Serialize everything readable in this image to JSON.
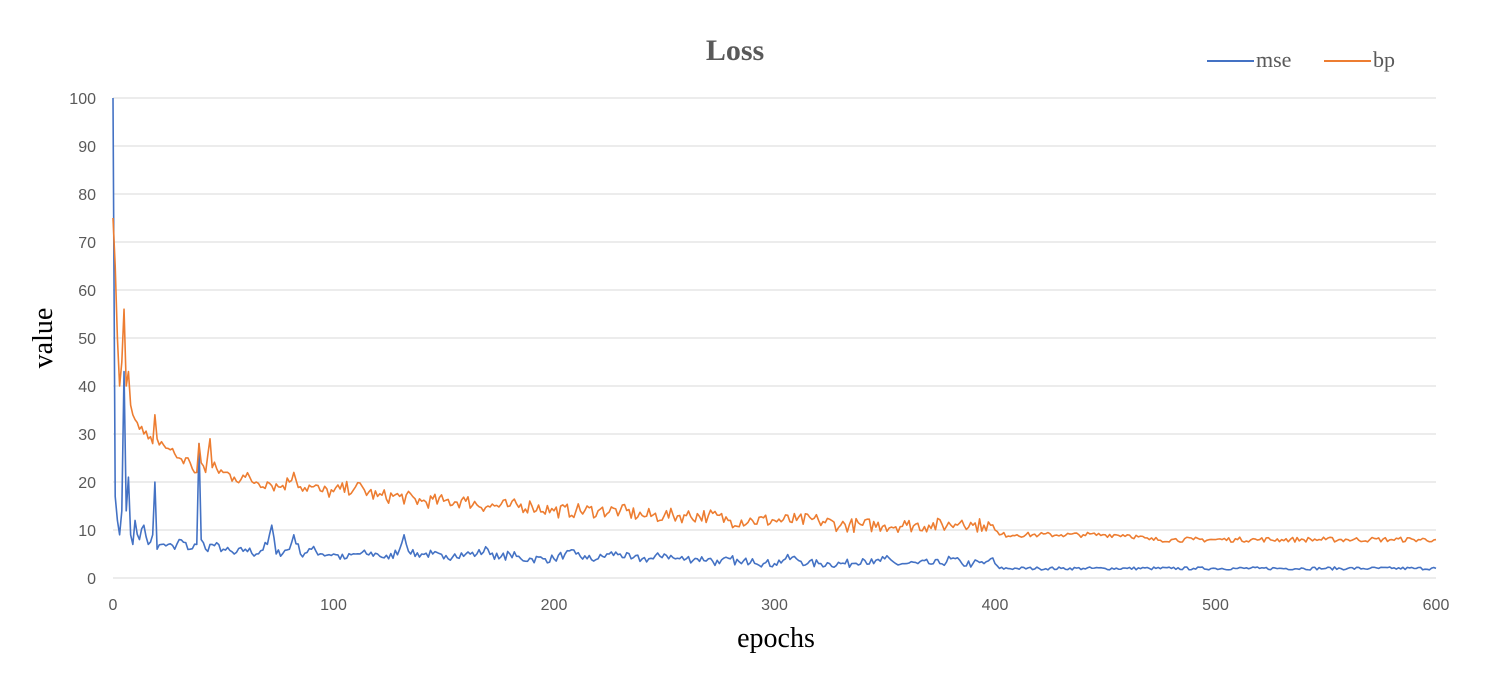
{
  "chart_data": {
    "type": "line",
    "title": "Loss",
    "xlabel": "epochs",
    "ylabel": "value",
    "xlim": [
      0,
      600
    ],
    "ylim": [
      0,
      100
    ],
    "x_ticks": [
      0,
      100,
      200,
      300,
      400,
      500,
      600
    ],
    "y_ticks": [
      0,
      10,
      20,
      30,
      40,
      50,
      60,
      70,
      80,
      90,
      100
    ],
    "grid": "horizontal",
    "legend_position": "top-right",
    "series": [
      {
        "name": "mse",
        "color": "#4472C4",
        "points": [
          [
            0,
            100
          ],
          [
            1,
            17
          ],
          [
            2,
            12
          ],
          [
            3,
            9
          ],
          [
            4,
            14
          ],
          [
            5,
            43
          ],
          [
            6,
            14
          ],
          [
            7,
            21
          ],
          [
            8,
            9
          ],
          [
            9,
            7
          ],
          [
            10,
            12
          ],
          [
            12,
            8
          ],
          [
            14,
            11
          ],
          [
            16,
            7
          ],
          [
            18,
            9
          ],
          [
            19,
            20
          ],
          [
            20,
            6
          ],
          [
            22,
            7
          ],
          [
            25,
            7
          ],
          [
            28,
            6
          ],
          [
            30,
            8
          ],
          [
            35,
            6
          ],
          [
            38,
            7
          ],
          [
            39,
            28
          ],
          [
            40,
            8
          ],
          [
            42,
            6
          ],
          [
            45,
            7
          ],
          [
            50,
            6
          ],
          [
            55,
            5
          ],
          [
            60,
            6
          ],
          [
            65,
            5
          ],
          [
            70,
            7
          ],
          [
            72,
            11
          ],
          [
            74,
            5
          ],
          [
            80,
            6
          ],
          [
            82,
            9
          ],
          [
            85,
            5
          ],
          [
            90,
            6
          ],
          [
            95,
            5
          ],
          [
            100,
            5
          ],
          [
            105,
            4
          ],
          [
            110,
            5
          ],
          [
            115,
            5
          ],
          [
            120,
            5
          ],
          [
            125,
            4
          ],
          [
            130,
            6
          ],
          [
            132,
            9
          ],
          [
            135,
            5
          ],
          [
            140,
            5
          ],
          [
            145,
            5
          ],
          [
            150,
            4
          ],
          [
            155,
            5
          ],
          [
            160,
            5
          ],
          [
            165,
            5
          ],
          [
            170,
            6
          ],
          [
            175,
            4
          ],
          [
            180,
            5
          ],
          [
            185,
            4
          ],
          [
            190,
            4
          ],
          [
            195,
            4
          ],
          [
            200,
            4
          ],
          [
            205,
            5
          ],
          [
            210,
            5
          ],
          [
            215,
            4
          ],
          [
            220,
            4
          ],
          [
            225,
            5
          ],
          [
            230,
            5
          ],
          [
            235,
            4
          ],
          [
            240,
            4
          ],
          [
            245,
            4
          ],
          [
            250,
            5
          ],
          [
            255,
            4
          ],
          [
            260,
            4
          ],
          [
            265,
            4
          ],
          [
            270,
            4
          ],
          [
            275,
            3
          ],
          [
            280,
            4
          ],
          [
            285,
            3
          ],
          [
            290,
            4
          ],
          [
            295,
            3
          ],
          [
            300,
            3
          ],
          [
            305,
            4
          ],
          [
            310,
            4
          ],
          [
            315,
            3
          ],
          [
            320,
            3
          ],
          [
            325,
            3
          ],
          [
            330,
            3
          ],
          [
            335,
            3
          ],
          [
            340,
            4
          ],
          [
            345,
            3
          ],
          [
            350,
            4
          ],
          [
            355,
            3
          ],
          [
            360,
            3
          ],
          [
            365,
            3
          ],
          [
            370,
            3
          ],
          [
            375,
            3
          ],
          [
            380,
            4
          ],
          [
            385,
            3
          ],
          [
            390,
            3
          ],
          [
            395,
            3
          ],
          [
            398,
            4
          ],
          [
            400,
            3
          ],
          [
            402,
            2
          ],
          [
            410,
            2
          ],
          [
            420,
            2
          ],
          [
            430,
            2
          ],
          [
            440,
            2
          ],
          [
            450,
            2
          ],
          [
            460,
            2
          ],
          [
            470,
            2
          ],
          [
            480,
            2
          ],
          [
            490,
            2
          ],
          [
            500,
            2
          ],
          [
            510,
            2
          ],
          [
            520,
            2
          ],
          [
            530,
            2
          ],
          [
            540,
            2
          ],
          [
            550,
            2
          ],
          [
            560,
            2
          ],
          [
            570,
            2
          ],
          [
            580,
            2
          ],
          [
            590,
            2
          ],
          [
            600,
            2
          ]
        ],
        "noise": 0.9
      },
      {
        "name": "bp",
        "color": "#ED7D31",
        "points": [
          [
            0,
            75
          ],
          [
            1,
            65
          ],
          [
            2,
            50
          ],
          [
            3,
            40
          ],
          [
            4,
            45
          ],
          [
            5,
            56
          ],
          [
            6,
            40
          ],
          [
            7,
            43
          ],
          [
            8,
            36
          ],
          [
            9,
            34
          ],
          [
            10,
            33
          ],
          [
            12,
            31
          ],
          [
            14,
            30
          ],
          [
            16,
            29
          ],
          [
            18,
            28
          ],
          [
            19,
            34
          ],
          [
            20,
            29
          ],
          [
            25,
            27
          ],
          [
            30,
            25
          ],
          [
            35,
            24
          ],
          [
            38,
            22
          ],
          [
            39,
            28
          ],
          [
            40,
            24
          ],
          [
            42,
            22
          ],
          [
            44,
            29
          ],
          [
            45,
            23
          ],
          [
            50,
            22
          ],
          [
            55,
            21
          ],
          [
            60,
            21
          ],
          [
            65,
            20
          ],
          [
            70,
            20
          ],
          [
            75,
            19
          ],
          [
            80,
            20
          ],
          [
            82,
            22
          ],
          [
            85,
            19
          ],
          [
            90,
            19
          ],
          [
            95,
            18
          ],
          [
            100,
            18
          ],
          [
            110,
            19
          ],
          [
            120,
            17
          ],
          [
            130,
            17
          ],
          [
            140,
            16
          ],
          [
            150,
            16
          ],
          [
            160,
            16
          ],
          [
            170,
            15
          ],
          [
            180,
            15
          ],
          [
            190,
            15
          ],
          [
            200,
            14
          ],
          [
            210,
            14
          ],
          [
            220,
            14
          ],
          [
            230,
            14
          ],
          [
            240,
            13
          ],
          [
            250,
            13
          ],
          [
            260,
            13
          ],
          [
            270,
            13
          ],
          [
            280,
            12
          ],
          [
            290,
            12
          ],
          [
            300,
            12
          ],
          [
            310,
            12
          ],
          [
            320,
            12
          ],
          [
            330,
            11
          ],
          [
            340,
            11
          ],
          [
            350,
            11
          ],
          [
            360,
            11
          ],
          [
            370,
            11
          ],
          [
            380,
            11
          ],
          [
            385,
            12
          ],
          [
            390,
            11
          ],
          [
            395,
            11
          ],
          [
            398,
            11
          ],
          [
            400,
            10
          ],
          [
            402,
            9
          ],
          [
            410,
            9
          ],
          [
            420,
            9
          ],
          [
            430,
            9
          ],
          [
            440,
            9
          ],
          [
            450,
            9
          ],
          [
            460,
            9
          ],
          [
            470,
            8
          ],
          [
            480,
            8
          ],
          [
            490,
            8
          ],
          [
            500,
            8
          ],
          [
            510,
            8
          ],
          [
            520,
            8
          ],
          [
            530,
            8
          ],
          [
            540,
            8
          ],
          [
            550,
            8
          ],
          [
            560,
            8
          ],
          [
            570,
            8
          ],
          [
            580,
            8
          ],
          [
            590,
            8
          ],
          [
            600,
            8
          ]
        ],
        "noise": 1.5
      }
    ]
  }
}
